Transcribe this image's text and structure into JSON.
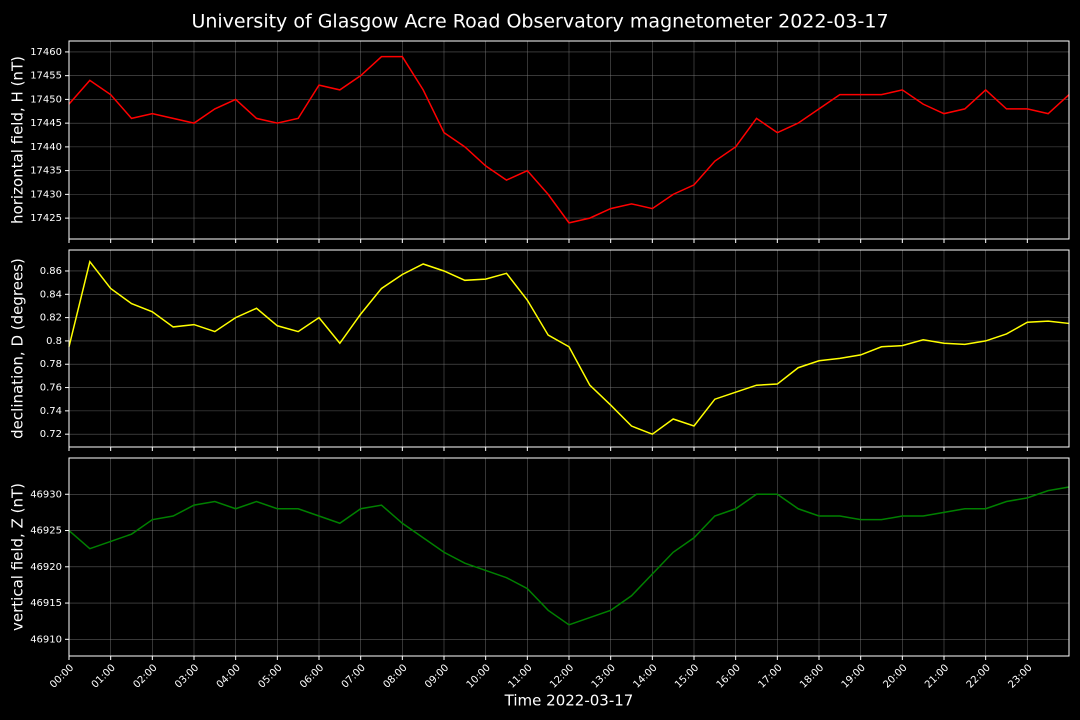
{
  "chart_data": [
    {
      "type": "line",
      "title": "University of Glasgow Acre Road Observatory magnetometer 2022-03-17",
      "y_label": "horizontal field, H (nT)",
      "x": [
        0,
        0.5,
        1,
        1.5,
        2,
        2.5,
        3,
        3.5,
        4,
        4.5,
        5,
        5.5,
        6,
        6.5,
        7,
        7.5,
        8,
        8.5,
        9,
        9.5,
        10,
        10.5,
        11,
        11.5,
        12,
        12.5,
        13,
        13.5,
        14,
        14.5,
        15,
        15.5,
        16,
        16.5,
        17,
        17.5,
        18,
        18.5,
        19,
        19.5,
        20,
        20.5,
        21,
        21.5,
        22,
        22.5,
        23,
        23.5,
        24
      ],
      "xlim": [
        0,
        24
      ],
      "xticks": [
        0,
        1,
        2,
        3,
        4,
        5,
        6,
        7,
        8,
        9,
        10,
        11,
        12,
        13,
        14,
        15,
        16,
        17,
        18,
        19,
        20,
        21,
        22,
        23
      ],
      "ylim": [
        17420.6,
        17462.3
      ],
      "yticks": [
        17425,
        17430,
        17435,
        17440,
        17445,
        17450,
        17455,
        17460
      ],
      "grid": true,
      "series": [
        {
          "name": "H",
          "color": "#ff0000",
          "values": [
            17449,
            17454,
            17451,
            17446,
            17447,
            17446,
            17445,
            17448,
            17450,
            17446,
            17445,
            17446,
            17453,
            17452,
            17455,
            17459,
            17459,
            17452,
            17443,
            17440,
            17436,
            17433,
            17435,
            17430,
            17424,
            17425,
            17427,
            17428,
            17427,
            17430,
            17432,
            17437,
            17440,
            17446,
            17443,
            17445,
            17448,
            17451,
            17451,
            17451,
            17452,
            17449,
            17447,
            17448,
            17452,
            17448,
            17448,
            17447,
            17451
          ]
        }
      ]
    },
    {
      "type": "line",
      "y_label": "declination, D (degrees)",
      "x": [
        0,
        0.5,
        1,
        1.5,
        2,
        2.5,
        3,
        3.5,
        4,
        4.5,
        5,
        5.5,
        6,
        6.5,
        7,
        7.5,
        8,
        8.5,
        9,
        9.5,
        10,
        10.5,
        11,
        11.5,
        12,
        12.5,
        13,
        13.5,
        14,
        14.5,
        15,
        15.5,
        16,
        16.5,
        17,
        17.5,
        18,
        18.5,
        19,
        19.5,
        20,
        20.5,
        21,
        21.5,
        22,
        22.5,
        23,
        23.5,
        24
      ],
      "xlim": [
        0,
        24
      ],
      "xticks": [
        0,
        1,
        2,
        3,
        4,
        5,
        6,
        7,
        8,
        9,
        10,
        11,
        12,
        13,
        14,
        15,
        16,
        17,
        18,
        19,
        20,
        21,
        22,
        23
      ],
      "ylim": [
        0.709,
        0.878
      ],
      "yticks": [
        0.72,
        0.74,
        0.76,
        0.78,
        0.8,
        0.82,
        0.84,
        0.86
      ],
      "grid": true,
      "series": [
        {
          "name": "D",
          "color": "#ffff00",
          "values": [
            0.795,
            0.868,
            0.845,
            0.832,
            0.825,
            0.812,
            0.814,
            0.808,
            0.82,
            0.828,
            0.813,
            0.808,
            0.82,
            0.798,
            0.823,
            0.845,
            0.857,
            0.866,
            0.86,
            0.852,
            0.853,
            0.858,
            0.835,
            0.805,
            0.795,
            0.762,
            0.745,
            0.727,
            0.72,
            0.733,
            0.727,
            0.75,
            0.756,
            0.762,
            0.763,
            0.777,
            0.783,
            0.785,
            0.788,
            0.795,
            0.796,
            0.801,
            0.798,
            0.797,
            0.8,
            0.806,
            0.816,
            0.817,
            0.815
          ]
        }
      ]
    },
    {
      "type": "line",
      "y_label": "vertical field, Z (nT)",
      "x_label": "Time 2022-03-17",
      "x": [
        0,
        0.5,
        1,
        1.5,
        2,
        2.5,
        3,
        3.5,
        4,
        4.5,
        5,
        5.5,
        6,
        6.5,
        7,
        7.5,
        8,
        8.5,
        9,
        9.5,
        10,
        10.5,
        11,
        11.5,
        12,
        12.5,
        13,
        13.5,
        14,
        14.5,
        15,
        15.5,
        16,
        16.5,
        17,
        17.5,
        18,
        18.5,
        19,
        19.5,
        20,
        20.5,
        21,
        21.5,
        22,
        22.5,
        23,
        23.5,
        24
      ],
      "xlim": [
        0,
        24
      ],
      "xticks": [
        {
          "value": 0,
          "label": "00:00"
        },
        {
          "value": 1,
          "label": "01:00"
        },
        {
          "value": 2,
          "label": "02:00"
        },
        {
          "value": 3,
          "label": "03:00"
        },
        {
          "value": 4,
          "label": "04:00"
        },
        {
          "value": 5,
          "label": "05:00"
        },
        {
          "value": 6,
          "label": "06:00"
        },
        {
          "value": 7,
          "label": "07:00"
        },
        {
          "value": 8,
          "label": "08:00"
        },
        {
          "value": 9,
          "label": "09:00"
        },
        {
          "value": 10,
          "label": "10:00"
        },
        {
          "value": 11,
          "label": "11:00"
        },
        {
          "value": 12,
          "label": "12:00"
        },
        {
          "value": 13,
          "label": "13:00"
        },
        {
          "value": 14,
          "label": "14:00"
        },
        {
          "value": 15,
          "label": "15:00"
        },
        {
          "value": 16,
          "label": "16:00"
        },
        {
          "value": 17,
          "label": "17:00"
        },
        {
          "value": 18,
          "label": "18:00"
        },
        {
          "value": 19,
          "label": "19:00"
        },
        {
          "value": 20,
          "label": "20:00"
        },
        {
          "value": 21,
          "label": "21:00"
        },
        {
          "value": 22,
          "label": "22:00"
        },
        {
          "value": 23,
          "label": "23:00"
        }
      ],
      "ylim": [
        46907.7,
        46935
      ],
      "yticks": [
        46910,
        46915,
        46920,
        46925,
        46930
      ],
      "grid": true,
      "series": [
        {
          "name": "Z",
          "color": "#008000",
          "values": [
            46925,
            46922.5,
            46923.5,
            46924.5,
            46926.5,
            46927,
            46928.5,
            46929,
            46928,
            46929,
            46928,
            46928,
            46927,
            46926,
            46928,
            46928.5,
            46926,
            46924,
            46922,
            46920.5,
            46919.5,
            46918.5,
            46917,
            46914,
            46912,
            46913,
            46914,
            46916,
            46919,
            46922,
            46924,
            46927,
            46928,
            46930,
            46930,
            46928,
            46927,
            46927,
            46926.5,
            46926.5,
            46927,
            46927,
            46927.5,
            46928,
            46928,
            46929,
            46929.5,
            46930.5,
            46931
          ]
        }
      ]
    }
  ]
}
